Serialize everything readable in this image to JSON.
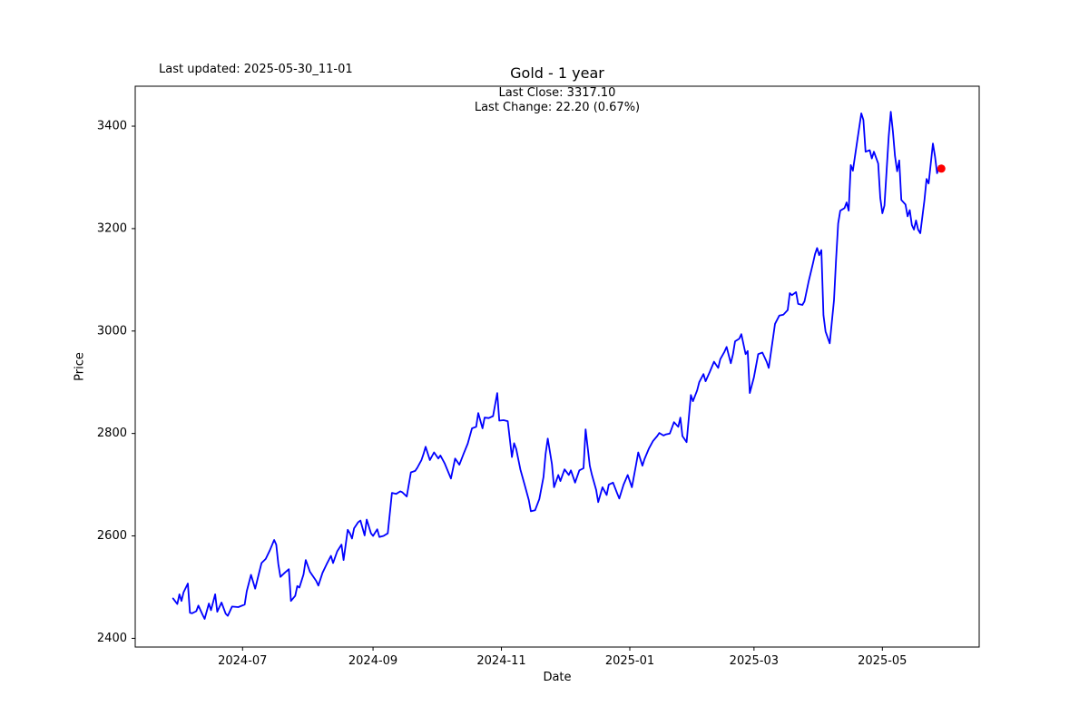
{
  "header": {
    "last_updated": "Last updated: 2025-05-30_11-01",
    "title": "Gold - 1 year",
    "subtitle_line1": "Last Close: 3317.10",
    "subtitle_line2": "Last Change: 22.20 (0.67%)"
  },
  "chart_data": {
    "type": "line",
    "title": "Gold - 1 year",
    "xlabel": "Date",
    "ylabel": "Price",
    "line_color": "#0000ff",
    "marker_color": "#ff0000",
    "background_color": "#ffffff",
    "grid": false,
    "last_close": 3317.1,
    "last_change": "22.20 (0.67%)",
    "y_ticks": [
      2400,
      2600,
      2800,
      3000,
      3200,
      3400
    ],
    "x_ticks": [
      {
        "label": "2024-07",
        "date": "2024-07-01"
      },
      {
        "label": "2024-09",
        "date": "2024-09-01"
      },
      {
        "label": "2024-11",
        "date": "2024-11-01"
      },
      {
        "label": "2025-01",
        "date": "2025-01-01"
      },
      {
        "label": "2025-03",
        "date": "2025-03-01"
      },
      {
        "label": "2025-05",
        "date": "2025-05-01"
      }
    ],
    "x_domain": [
      "2024-05-11",
      "2025-06-16"
    ],
    "y_domain": [
      2383,
      3478
    ],
    "series": [
      {
        "name": "Gold",
        "points": [
          [
            "2024-05-29",
            2478
          ],
          [
            "2024-05-31",
            2467
          ],
          [
            "2024-06-01",
            2486
          ],
          [
            "2024-06-02",
            2473
          ],
          [
            "2024-06-03",
            2490
          ],
          [
            "2024-06-05",
            2507
          ],
          [
            "2024-06-06",
            2450
          ],
          [
            "2024-06-07",
            2449
          ],
          [
            "2024-06-09",
            2453
          ],
          [
            "2024-06-10",
            2464
          ],
          [
            "2024-06-12",
            2446
          ],
          [
            "2024-06-13",
            2438
          ],
          [
            "2024-06-15",
            2468
          ],
          [
            "2024-06-16",
            2455
          ],
          [
            "2024-06-18",
            2486
          ],
          [
            "2024-06-19",
            2452
          ],
          [
            "2024-06-21",
            2470
          ],
          [
            "2024-06-23",
            2448
          ],
          [
            "2024-06-24",
            2444
          ],
          [
            "2024-06-26",
            2462
          ],
          [
            "2024-06-29",
            2461
          ],
          [
            "2024-07-02",
            2466
          ],
          [
            "2024-07-03",
            2492
          ],
          [
            "2024-07-05",
            2524
          ],
          [
            "2024-07-07",
            2497
          ],
          [
            "2024-07-09",
            2530
          ],
          [
            "2024-07-10",
            2547
          ],
          [
            "2024-07-12",
            2555
          ],
          [
            "2024-07-14",
            2572
          ],
          [
            "2024-07-16",
            2592
          ],
          [
            "2024-07-17",
            2583
          ],
          [
            "2024-07-18",
            2545
          ],
          [
            "2024-07-19",
            2520
          ],
          [
            "2024-07-21",
            2528
          ],
          [
            "2024-07-23",
            2535
          ],
          [
            "2024-07-24",
            2473
          ],
          [
            "2024-07-26",
            2483
          ],
          [
            "2024-07-27",
            2502
          ],
          [
            "2024-07-28",
            2499
          ],
          [
            "2024-07-30",
            2525
          ],
          [
            "2024-07-31",
            2553
          ],
          [
            "2024-08-02",
            2530
          ],
          [
            "2024-08-05",
            2512
          ],
          [
            "2024-08-06",
            2503
          ],
          [
            "2024-08-08",
            2528
          ],
          [
            "2024-08-10",
            2545
          ],
          [
            "2024-08-12",
            2561
          ],
          [
            "2024-08-13",
            2547
          ],
          [
            "2024-08-15",
            2570
          ],
          [
            "2024-08-17",
            2583
          ],
          [
            "2024-08-18",
            2553
          ],
          [
            "2024-08-20",
            2612
          ],
          [
            "2024-08-21",
            2605
          ],
          [
            "2024-08-22",
            2595
          ],
          [
            "2024-08-23",
            2615
          ],
          [
            "2024-08-25",
            2627
          ],
          [
            "2024-08-26",
            2630
          ],
          [
            "2024-08-28",
            2601
          ],
          [
            "2024-08-29",
            2632
          ],
          [
            "2024-08-31",
            2605
          ],
          [
            "2024-09-01",
            2600
          ],
          [
            "2024-09-03",
            2613
          ],
          [
            "2024-09-04",
            2598
          ],
          [
            "2024-09-06",
            2600
          ],
          [
            "2024-09-08",
            2605
          ],
          [
            "2024-09-10",
            2684
          ],
          [
            "2024-09-12",
            2682
          ],
          [
            "2024-09-14",
            2687
          ],
          [
            "2024-09-15",
            2685
          ],
          [
            "2024-09-17",
            2677
          ],
          [
            "2024-09-19",
            2724
          ],
          [
            "2024-09-21",
            2727
          ],
          [
            "2024-09-22",
            2733
          ],
          [
            "2024-09-24",
            2748
          ],
          [
            "2024-09-25",
            2760
          ],
          [
            "2024-09-26",
            2774
          ],
          [
            "2024-09-28",
            2748
          ],
          [
            "2024-09-30",
            2763
          ],
          [
            "2024-10-02",
            2751
          ],
          [
            "2024-10-03",
            2757
          ],
          [
            "2024-10-05",
            2742
          ],
          [
            "2024-10-08",
            2712
          ],
          [
            "2024-10-10",
            2751
          ],
          [
            "2024-10-12",
            2739
          ],
          [
            "2024-10-14",
            2760
          ],
          [
            "2024-10-16",
            2780
          ],
          [
            "2024-10-18",
            2810
          ],
          [
            "2024-10-20",
            2813
          ],
          [
            "2024-10-21",
            2840
          ],
          [
            "2024-10-23",
            2810
          ],
          [
            "2024-10-24",
            2831
          ],
          [
            "2024-10-26",
            2830
          ],
          [
            "2024-10-28",
            2834
          ],
          [
            "2024-10-30",
            2879
          ],
          [
            "2024-10-31",
            2825
          ],
          [
            "2024-11-02",
            2826
          ],
          [
            "2024-11-04",
            2824
          ],
          [
            "2024-11-06",
            2754
          ],
          [
            "2024-11-07",
            2781
          ],
          [
            "2024-11-08",
            2770
          ],
          [
            "2024-11-10",
            2730
          ],
          [
            "2024-11-12",
            2700
          ],
          [
            "2024-11-14",
            2670
          ],
          [
            "2024-11-15",
            2648
          ],
          [
            "2024-11-17",
            2650
          ],
          [
            "2024-11-19",
            2672
          ],
          [
            "2024-11-21",
            2715
          ],
          [
            "2024-11-22",
            2760
          ],
          [
            "2024-11-23",
            2790
          ],
          [
            "2024-11-25",
            2740
          ],
          [
            "2024-11-26",
            2695
          ],
          [
            "2024-11-28",
            2719
          ],
          [
            "2024-11-29",
            2707
          ],
          [
            "2024-12-01",
            2730
          ],
          [
            "2024-12-03",
            2719
          ],
          [
            "2024-12-04",
            2728
          ],
          [
            "2024-12-06",
            2704
          ],
          [
            "2024-12-08",
            2728
          ],
          [
            "2024-12-10",
            2732
          ],
          [
            "2024-12-11",
            2808
          ],
          [
            "2024-12-13",
            2737
          ],
          [
            "2024-12-14",
            2719
          ],
          [
            "2024-12-16",
            2690
          ],
          [
            "2024-12-17",
            2666
          ],
          [
            "2024-12-19",
            2695
          ],
          [
            "2024-12-21",
            2680
          ],
          [
            "2024-12-22",
            2700
          ],
          [
            "2024-12-24",
            2704
          ],
          [
            "2024-12-26",
            2683
          ],
          [
            "2024-12-27",
            2673
          ],
          [
            "2024-12-29",
            2700
          ],
          [
            "2024-12-31",
            2719
          ],
          [
            "2025-01-02",
            2695
          ],
          [
            "2025-01-04",
            2740
          ],
          [
            "2025-01-05",
            2763
          ],
          [
            "2025-01-07",
            2737
          ],
          [
            "2025-01-08",
            2750
          ],
          [
            "2025-01-10",
            2770
          ],
          [
            "2025-01-12",
            2785
          ],
          [
            "2025-01-14",
            2795
          ],
          [
            "2025-01-15",
            2801
          ],
          [
            "2025-01-17",
            2796
          ],
          [
            "2025-01-18",
            2798
          ],
          [
            "2025-01-20",
            2800
          ],
          [
            "2025-01-22",
            2822
          ],
          [
            "2025-01-24",
            2813
          ],
          [
            "2025-01-25",
            2831
          ],
          [
            "2025-01-26",
            2795
          ],
          [
            "2025-01-28",
            2783
          ],
          [
            "2025-01-30",
            2875
          ],
          [
            "2025-01-31",
            2863
          ],
          [
            "2025-02-02",
            2884
          ],
          [
            "2025-02-03",
            2900
          ],
          [
            "2025-02-05",
            2916
          ],
          [
            "2025-02-06",
            2902
          ],
          [
            "2025-02-08",
            2920
          ],
          [
            "2025-02-10",
            2940
          ],
          [
            "2025-02-12",
            2928
          ],
          [
            "2025-02-13",
            2945
          ],
          [
            "2025-02-15",
            2960
          ],
          [
            "2025-02-16",
            2969
          ],
          [
            "2025-02-18",
            2937
          ],
          [
            "2025-02-19",
            2955
          ],
          [
            "2025-02-20",
            2980
          ],
          [
            "2025-02-22",
            2985
          ],
          [
            "2025-02-23",
            2994
          ],
          [
            "2025-02-25",
            2955
          ],
          [
            "2025-02-26",
            2961
          ],
          [
            "2025-02-27",
            2879
          ],
          [
            "2025-03-01",
            2910
          ],
          [
            "2025-03-03",
            2955
          ],
          [
            "2025-03-05",
            2958
          ],
          [
            "2025-03-07",
            2940
          ],
          [
            "2025-03-08",
            2928
          ],
          [
            "2025-03-10",
            2985
          ],
          [
            "2025-03-11",
            3014
          ],
          [
            "2025-03-13",
            3030
          ],
          [
            "2025-03-15",
            3032
          ],
          [
            "2025-03-17",
            3041
          ],
          [
            "2025-03-18",
            3074
          ],
          [
            "2025-03-19",
            3070
          ],
          [
            "2025-03-21",
            3076
          ],
          [
            "2025-03-22",
            3053
          ],
          [
            "2025-03-24",
            3051
          ],
          [
            "2025-03-25",
            3058
          ],
          [
            "2025-03-27",
            3097
          ],
          [
            "2025-03-29",
            3132
          ],
          [
            "2025-03-30",
            3150
          ],
          [
            "2025-03-31",
            3162
          ],
          [
            "2025-04-01",
            3148
          ],
          [
            "2025-04-02",
            3158
          ],
          [
            "2025-04-03",
            3031
          ],
          [
            "2025-04-04",
            2999
          ],
          [
            "2025-04-06",
            2976
          ],
          [
            "2025-04-08",
            3060
          ],
          [
            "2025-04-09",
            3140
          ],
          [
            "2025-04-10",
            3210
          ],
          [
            "2025-04-11",
            3235
          ],
          [
            "2025-04-13",
            3240
          ],
          [
            "2025-04-14",
            3251
          ],
          [
            "2025-04-15",
            3235
          ],
          [
            "2025-04-16",
            3324
          ],
          [
            "2025-04-17",
            3313
          ],
          [
            "2025-04-19",
            3370
          ],
          [
            "2025-04-21",
            3425
          ],
          [
            "2025-04-22",
            3412
          ],
          [
            "2025-04-23",
            3350
          ],
          [
            "2025-04-25",
            3353
          ],
          [
            "2025-04-26",
            3337
          ],
          [
            "2025-04-27",
            3350
          ],
          [
            "2025-04-29",
            3327
          ],
          [
            "2025-04-30",
            3260
          ],
          [
            "2025-05-01",
            3230
          ],
          [
            "2025-05-02",
            3245
          ],
          [
            "2025-05-04",
            3380
          ],
          [
            "2025-05-05",
            3428
          ],
          [
            "2025-05-06",
            3390
          ],
          [
            "2025-05-07",
            3342
          ],
          [
            "2025-05-08",
            3312
          ],
          [
            "2025-05-09",
            3333
          ],
          [
            "2025-05-10",
            3256
          ],
          [
            "2025-05-12",
            3247
          ],
          [
            "2025-05-13",
            3224
          ],
          [
            "2025-05-14",
            3236
          ],
          [
            "2025-05-15",
            3207
          ],
          [
            "2025-05-16",
            3198
          ],
          [
            "2025-05-17",
            3216
          ],
          [
            "2025-05-18",
            3198
          ],
          [
            "2025-05-19",
            3191
          ],
          [
            "2025-05-21",
            3256
          ],
          [
            "2025-05-22",
            3297
          ],
          [
            "2025-05-23",
            3288
          ],
          [
            "2025-05-25",
            3366
          ],
          [
            "2025-05-26",
            3341
          ],
          [
            "2025-05-27",
            3308
          ],
          [
            "2025-05-28",
            3322
          ],
          [
            "2025-05-29",
            3317.1
          ]
        ]
      }
    ]
  }
}
